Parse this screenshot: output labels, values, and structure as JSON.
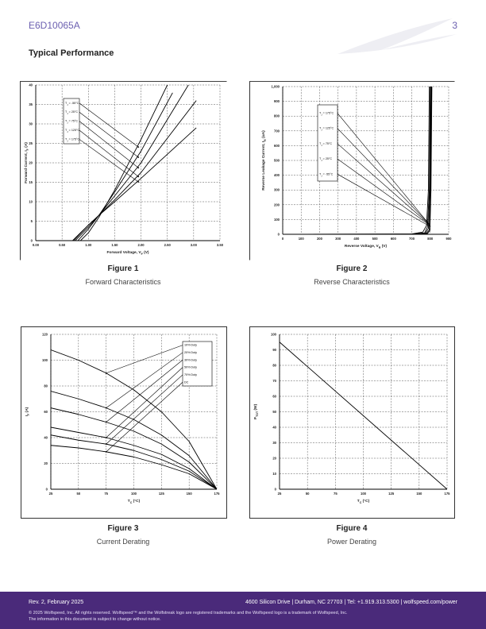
{
  "header": {
    "part_number": "E6D10065A",
    "page_number": "3"
  },
  "section_title": "Typical Performance",
  "figures": [
    {
      "number": "Figure 1",
      "title": "Forward Characteristics"
    },
    {
      "number": "Figure 2",
      "title": "Reverse Characteristics"
    },
    {
      "number": "Figure 3",
      "title": "Current Derating"
    },
    {
      "number": "Figure 4",
      "title": "Power Derating"
    }
  ],
  "chart_data": [
    {
      "type": "line",
      "xlabel": "Forward Voltage, V_F (V)",
      "ylabel": "Forward Current, I_F (A)",
      "xlim": [
        0,
        3.5
      ],
      "ylim": [
        0,
        40
      ],
      "xticks": [
        "0.00",
        "0.50",
        "1.00",
        "1.50",
        "2.00",
        "2.50",
        "3.00",
        "3.50"
      ],
      "yticks": [
        "0",
        "5",
        "10",
        "15",
        "20",
        "25",
        "30",
        "35",
        "40"
      ],
      "legend": [
        "T_J = -55°C",
        "T_J = 25°C",
        "T_J = 75°C",
        "T_J = 125°C",
        "T_J = 175°C"
      ],
      "series": [
        {
          "name": "T_J = -55°C",
          "x": [
            0.85,
            1.0,
            1.2,
            1.5,
            2.0,
            2.5
          ],
          "y": [
            0,
            2,
            6,
            13,
            26,
            40
          ]
        },
        {
          "name": "T_J = 25°C",
          "x": [
            0.8,
            1.0,
            1.2,
            1.5,
            2.0,
            2.6
          ],
          "y": [
            0,
            3,
            6.5,
            12.5,
            23,
            38
          ]
        },
        {
          "name": "T_J = 75°C",
          "x": [
            0.75,
            1.0,
            1.2,
            1.5,
            2.0,
            2.9
          ],
          "y": [
            0,
            3.5,
            6.5,
            11.5,
            20,
            40
          ]
        },
        {
          "name": "T_J = 125°C",
          "x": [
            0.72,
            1.0,
            1.2,
            1.5,
            2.0,
            3.05
          ],
          "y": [
            0,
            4,
            6.5,
            10.5,
            17.5,
            36
          ]
        },
        {
          "name": "T_J = 175°C",
          "x": [
            0.7,
            1.0,
            1.2,
            1.5,
            2.0,
            3.05
          ],
          "y": [
            0,
            4,
            6.5,
            10,
            16,
            29
          ]
        }
      ]
    },
    {
      "type": "line",
      "xlabel": "Reverse Voltage, V_R (V)",
      "ylabel": "Reverse Leakage Current, I_R (uA)",
      "xlim": [
        0,
        900
      ],
      "ylim": [
        0,
        1000
      ],
      "xticks": [
        "0",
        "100",
        "200",
        "300",
        "400",
        "500",
        "600",
        "700",
        "800",
        "900"
      ],
      "yticks": [
        "0",
        "100",
        "200",
        "300",
        "400",
        "500",
        "600",
        "700",
        "800",
        "900",
        "1,000"
      ],
      "legend": [
        "T_J = 175°C",
        "T_J = 125°C",
        "T_J = 75°C",
        "T_J = 25°C",
        "T_J = -55°C"
      ],
      "series": [
        {
          "name": "T_J = 175°C",
          "x": [
            0,
            700,
            760,
            780,
            790,
            795
          ],
          "y": [
            0,
            2,
            15,
            60,
            300,
            1000
          ]
        },
        {
          "name": "T_J = 125°C",
          "x": [
            0,
            700,
            770,
            785,
            795,
            800
          ],
          "y": [
            0,
            1,
            10,
            50,
            300,
            1000
          ]
        },
        {
          "name": "T_J = 75°C",
          "x": [
            0,
            700,
            775,
            790,
            798,
            803
          ],
          "y": [
            0,
            1,
            8,
            40,
            300,
            1000
          ]
        },
        {
          "name": "T_J = 25°C",
          "x": [
            0,
            700,
            780,
            795,
            801,
            806
          ],
          "y": [
            0,
            0.5,
            6,
            30,
            300,
            1000
          ]
        },
        {
          "name": "T_J = -55°C",
          "x": [
            0,
            700,
            785,
            798,
            804,
            809
          ],
          "y": [
            0,
            0.5,
            5,
            25,
            300,
            1000
          ]
        }
      ]
    },
    {
      "type": "line",
      "xlabel": "T_C (°C)",
      "ylabel": "I_F (A)",
      "xlim": [
        25,
        175
      ],
      "ylim": [
        0,
        120
      ],
      "xticks": [
        "25",
        "50",
        "75",
        "100",
        "125",
        "150",
        "175"
      ],
      "yticks": [
        "0",
        "20",
        "40",
        "60",
        "80",
        "100",
        "120"
      ],
      "legend": [
        "10% Duty",
        "20% Duty",
        "30% Duty",
        "50% Duty",
        "70% Duty",
        "DC"
      ],
      "series": [
        {
          "name": "10% Duty",
          "x": [
            25,
            50,
            75,
            100,
            125,
            150,
            175
          ],
          "y": [
            108,
            100,
            90,
            77,
            60,
            37,
            0
          ]
        },
        {
          "name": "20% Duty",
          "x": [
            25,
            50,
            75,
            100,
            125,
            150,
            175
          ],
          "y": [
            76,
            70,
            63,
            54,
            42,
            26,
            0
          ]
        },
        {
          "name": "30% Duty",
          "x": [
            25,
            50,
            75,
            100,
            125,
            150,
            175
          ],
          "y": [
            63,
            58,
            52,
            45,
            35,
            21,
            0
          ]
        },
        {
          "name": "50% Duty",
          "x": [
            25,
            50,
            75,
            100,
            125,
            150,
            175
          ],
          "y": [
            48,
            44,
            40,
            34,
            27,
            16,
            0
          ]
        },
        {
          "name": "70% Duty",
          "x": [
            25,
            50,
            75,
            100,
            125,
            150,
            175
          ],
          "y": [
            42,
            38,
            35,
            30,
            23,
            14,
            0
          ]
        },
        {
          "name": "DC",
          "x": [
            25,
            50,
            75,
            100,
            125,
            150,
            175
          ],
          "y": [
            34,
            32,
            29,
            25,
            19,
            12,
            0
          ]
        }
      ]
    },
    {
      "type": "line",
      "xlabel": "T_C (°C)",
      "ylabel": "P_TOT (W)",
      "xlim": [
        25,
        175
      ],
      "ylim": [
        0,
        100
      ],
      "xticks": [
        "25",
        "50",
        "75",
        "100",
        "125",
        "150",
        "175"
      ],
      "yticks": [
        "0",
        "10",
        "20",
        "30",
        "40",
        "50",
        "60",
        "70",
        "80",
        "90",
        "100"
      ],
      "series": [
        {
          "name": "",
          "x": [
            25,
            175
          ],
          "y": [
            95,
            0
          ]
        }
      ]
    }
  ],
  "footer": {
    "revision": "Rev. 2, February 2025",
    "address": "4600 Silicon Drive  |  Durham, NC 27703  |  Tel: +1.919.313.5300  |  wolfspeed.com/power",
    "copyright_line1": "© 2025 Wolfspeed, Inc. All rights reserved. Wolfspeed™ and the Wolfstreak logo are registered trademarks and the Wolfspeed logo is a trademark of Wolfspeed, Inc.",
    "copyright_line2": "The information in this document is subject to change without notice."
  }
}
